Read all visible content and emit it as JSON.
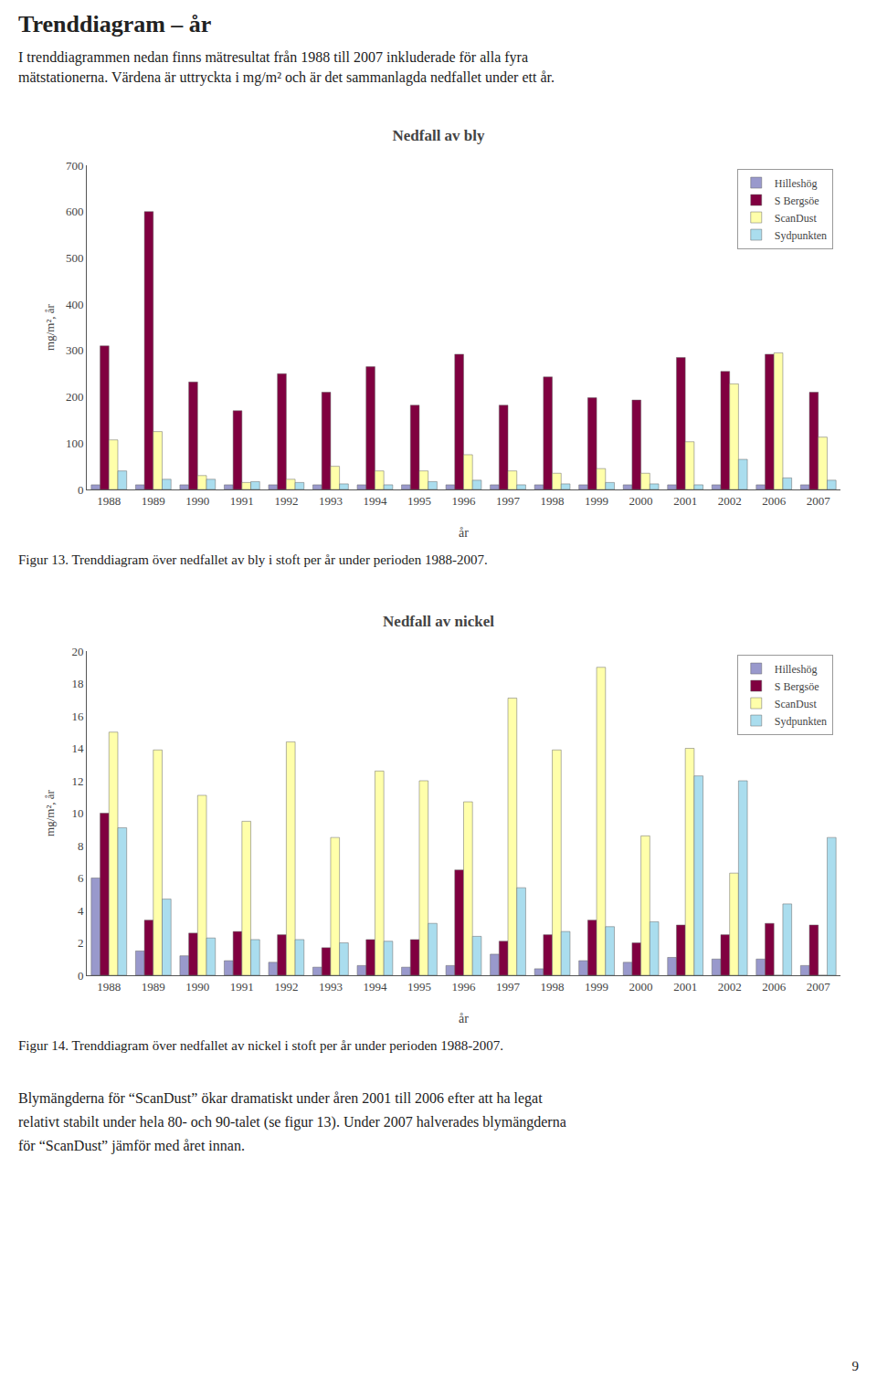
{
  "title": "Trenddiagram – år",
  "subtitle": [
    "I trenddiagrammen nedan finns mätresultat från 1988 till 2007 inkluderade för alla fyra",
    "mätstationerna. Värdena är uttryckta i mg/m² och är det sammanlagda nedfallet under ett år."
  ],
  "chart_data": [
    {
      "type": "bar",
      "title": "Nedfall av bly",
      "xlabel": "år",
      "ylabel": "mg/m², år",
      "categories": [
        "1988",
        "1989",
        "1990",
        "1991",
        "1992",
        "1993",
        "1994",
        "1995",
        "1996",
        "1997",
        "1998",
        "1999",
        "2000",
        "2001",
        "2002",
        "2006",
        "2007"
      ],
      "series": [
        {
          "name": "Hilleshög",
          "color": "#9999cc",
          "values": [
            10,
            10,
            10,
            10,
            10,
            10,
            10,
            10,
            10,
            10,
            10,
            10,
            10,
            10,
            10,
            10,
            10
          ]
        },
        {
          "name": "S Bergsöe",
          "color": "#800040",
          "values": [
            310,
            600,
            232,
            170,
            250,
            210,
            265,
            182,
            292,
            182,
            243,
            198,
            193,
            285,
            255,
            292,
            210
          ]
        },
        {
          "name": "ScanDust",
          "color": "#ffffaa",
          "values": [
            107,
            125,
            30,
            15,
            22,
            50,
            40,
            40,
            75,
            40,
            35,
            45,
            35,
            103,
            228,
            295,
            113
          ]
        },
        {
          "name": "Sydpunkten",
          "color": "#aaddee",
          "values": [
            40,
            22,
            22,
            17,
            15,
            12,
            10,
            17,
            20,
            10,
            12,
            15,
            12,
            10,
            65,
            25,
            20
          ]
        }
      ],
      "ylim": [
        0,
        700
      ],
      "yticks": [
        0,
        100,
        200,
        300,
        400,
        500,
        600,
        700
      ],
      "grid": false,
      "legend": "upper right",
      "annotations": [
        "Figur 13. Trenddiagram över nedfallet av bly i stoft per år under perioden 1988-2007."
      ]
    },
    {
      "type": "bar",
      "title": "Nedfall av nickel",
      "xlabel": "år",
      "ylabel": "mg/m², år",
      "categories": [
        "1988",
        "1989",
        "1990",
        "1991",
        "1992",
        "1993",
        "1994",
        "1995",
        "1996",
        "1997",
        "1998",
        "1999",
        "2000",
        "2001",
        "2002",
        "2006",
        "2007"
      ],
      "series": [
        {
          "name": "Hilleshög",
          "color": "#9999cc",
          "values": [
            6.0,
            1.5,
            1.2,
            0.9,
            0.8,
            0.5,
            0.6,
            0.5,
            0.6,
            1.3,
            0.4,
            0.9,
            0.8,
            1.1,
            1.0,
            1.0,
            0.6
          ]
        },
        {
          "name": "S Bergsöe",
          "color": "#800040",
          "values": [
            10.0,
            3.4,
            2.6,
            2.7,
            2.5,
            1.7,
            2.2,
            2.2,
            6.5,
            2.1,
            2.5,
            3.4,
            2.0,
            3.1,
            2.5,
            3.2,
            3.1
          ]
        },
        {
          "name": "ScanDust",
          "color": "#ffffaa",
          "values": [
            15.0,
            13.9,
            11.1,
            9.5,
            14.4,
            8.5,
            12.6,
            12.0,
            10.7,
            17.1,
            13.9,
            19.0,
            8.6,
            14.0,
            6.3,
            0.0,
            0.0
          ]
        },
        {
          "name": "Sydpunkten",
          "color": "#aaddee",
          "values": [
            9.1,
            4.7,
            2.3,
            2.2,
            2.2,
            2.0,
            2.1,
            3.2,
            2.4,
            5.4,
            2.7,
            3.0,
            3.3,
            12.3,
            12.0,
            4.4,
            8.5
          ]
        }
      ],
      "ylim": [
        0,
        20
      ],
      "yticks": [
        0,
        2,
        4,
        6,
        8,
        10,
        12,
        14,
        16,
        18,
        20
      ],
      "grid": false,
      "legend": "upper right",
      "annotations": [
        "Figur 14. Trenddiagram över nedfallet av nickel i stoft per år under perioden 1988-2007."
      ]
    }
  ],
  "annotations": [
    "Blymängderna för “ScanDust” ökar dramatiskt under åren 2001 till 2006 efter att ha legat",
    "relativt stabilt under hela 80- och 90-talet (se figur 13). Under 2007 halverades blymängderna",
    "för “ScanDust” jämför med året innan.",
    "9"
  ]
}
